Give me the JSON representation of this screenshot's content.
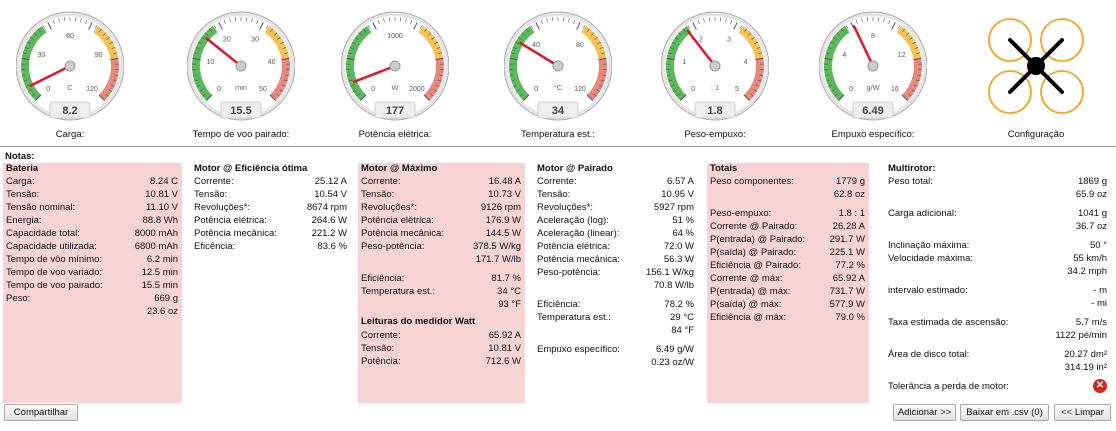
{
  "colors": {
    "panel_pink": "#f6d4d4",
    "needle": "#e0182d",
    "green": "#5cb85c",
    "yellow": "#f5c25a",
    "red": "#e8897f",
    "config_ring": "#f7a21b"
  },
  "gauges": [
    {
      "label": "Carga:",
      "value": "8.2",
      "unit": "C",
      "ticks": [
        "0",
        "30",
        "60",
        "90",
        "120"
      ],
      "min": 0,
      "max": 120,
      "reading": 8.2
    },
    {
      "label": "Tempo de voo pairado:",
      "value": "15.5",
      "unit": "min",
      "ticks": [
        "0",
        "10",
        "20",
        "30",
        "40",
        "50"
      ],
      "min": 0,
      "max": 50,
      "reading": 15.5
    },
    {
      "label": "Potência elétrica:",
      "value": "177",
      "unit": "W",
      "ticks": [
        "0",
        "1000",
        "2000"
      ],
      "min": 0,
      "max": 2000,
      "reading": 177
    },
    {
      "label": "Temperatura est.:",
      "value": "34",
      "unit": "°C",
      "ticks": [
        "0",
        "40",
        "80",
        "120"
      ],
      "min": 0,
      "max": 120,
      "reading": 34
    },
    {
      "label": "Peso-empuxo:",
      "value": "1.8",
      "unit": ": 1",
      "ticks": [
        "0",
        "1",
        "2",
        "3",
        "4",
        "5"
      ],
      "min": 0,
      "max": 5,
      "reading": 1.8
    },
    {
      "label": "Empuxo específico:",
      "value": "6.49",
      "unit": "g/W",
      "ticks": [
        "0",
        "4",
        "8",
        "12",
        "16"
      ],
      "min": 0,
      "max": 16,
      "reading": 6.49
    }
  ],
  "config_label": "Configuração",
  "notes_title": "Notas:",
  "battery": {
    "title": "Bateria",
    "rows": [
      {
        "k": "Carga:",
        "v": "8.24 C"
      },
      {
        "k": "Tensão:",
        "v": "10.81 V"
      },
      {
        "k": "Tensão nominal:",
        "v": "11.10 V"
      },
      {
        "k": "Energia:",
        "v": "88.8 Wh"
      },
      {
        "k": "Capacidade total:",
        "v": "8000 mAh"
      },
      {
        "k": "Capacidade utilizada:",
        "v": "6800 mAh"
      },
      {
        "k": "Tempo de vôo mínimo:",
        "v": "6.2 min"
      },
      {
        "k": "Tempo de voo variado:",
        "v": "12.5 min"
      },
      {
        "k": "Tempo de voo pairado:",
        "v": "15.5 min"
      },
      {
        "k": "Peso:",
        "v": "669 g"
      },
      {
        "k": "",
        "v": "23.6 oz"
      }
    ]
  },
  "motor_opt": {
    "title": "Motor @ Eficiência ótima",
    "rows": [
      {
        "k": "Corrente:",
        "v": "25.12 A"
      },
      {
        "k": "Tensão:",
        "v": "10.54 V"
      },
      {
        "k": "Revoluções*:",
        "v": "8674 rpm"
      },
      {
        "k": "Potência elétrica:",
        "v": "264.6 W"
      },
      {
        "k": "Potência mecânica:",
        "v": "221.2 W"
      },
      {
        "k": "Eficência:",
        "v": "83.6 %"
      }
    ]
  },
  "motor_max": {
    "title": "Motor @ Máximo",
    "rows": [
      {
        "k": "Corrente:",
        "v": "16.48 A"
      },
      {
        "k": "Tensão:",
        "v": "10.73 V"
      },
      {
        "k": "Revoluções*:",
        "v": "9126 rpm"
      },
      {
        "k": "Potência elétrica:",
        "v": "176.9 W"
      },
      {
        "k": "Potência mecânica:",
        "v": "144.5 W"
      },
      {
        "k": "Peso-potência:",
        "v": "378.5 W/kg"
      },
      {
        "k": "",
        "v": "171.7 W/lb"
      },
      {
        "k": "Eficiência:",
        "v": "81.7 %"
      },
      {
        "k": "Temperatura est.:",
        "v": "34 °C"
      },
      {
        "k": "",
        "v": "93 °F"
      }
    ],
    "watt_title": "Leituras do medidor Watt",
    "watt_rows": [
      {
        "k": "Corrente:",
        "v": "65.92 A"
      },
      {
        "k": "Tensão:",
        "v": "10.81 V"
      },
      {
        "k": "Potência:",
        "v": "712.6 W"
      }
    ]
  },
  "motor_hover": {
    "title": "Motor @ Pairado",
    "rows": [
      {
        "k": "Corrente:",
        "v": "6.57 A"
      },
      {
        "k": "Tensão:",
        "v": "10.95 V"
      },
      {
        "k": "Revoluções*:",
        "v": "5927 rpm"
      },
      {
        "k": "Aceleração (log):",
        "v": "51 %"
      },
      {
        "k": "Aceleração (linear):",
        "v": "64 %"
      },
      {
        "k": "Potência elétrica:",
        "v": "72.0 W"
      },
      {
        "k": "Potência mecânica:",
        "v": "56.3 W"
      },
      {
        "k": "Peso-potência:",
        "v": "156.1 W/kg"
      },
      {
        "k": "",
        "v": "70.8 W/lb"
      },
      {
        "k": "Eficiência:",
        "v": "78.2 %"
      },
      {
        "k": "Temperatura est.:",
        "v": "29 °C"
      },
      {
        "k": "",
        "v": "84 °F"
      },
      {
        "k": "Empuxo específico:",
        "v": "6.49 g/W"
      },
      {
        "k": "",
        "v": "0.23 oz/W"
      }
    ]
  },
  "totals": {
    "title": "Totais",
    "rows": [
      {
        "k": "Peso componentes:",
        "v": "1779 g"
      },
      {
        "k": "",
        "v": "62.8 oz"
      },
      {
        "k": "Peso-empuxo:",
        "v": "1.8 : 1"
      },
      {
        "k": "Corrente @ Pairado:",
        "v": "26.28 A"
      },
      {
        "k": "P(entrada) @ Pairado:",
        "v": "291.7 W"
      },
      {
        "k": "P(saída) @ Pairado:",
        "v": "225.1 W"
      },
      {
        "k": "Eficiência @ Pairado:",
        "v": "77.2 %"
      },
      {
        "k": "Corrente @ máx:",
        "v": "65.92 A"
      },
      {
        "k": "P(entrada) @ máx:",
        "v": "731.7 W"
      },
      {
        "k": "P(saída) @ máx:",
        "v": "577.9 W"
      },
      {
        "k": "Eficiência @ máx:",
        "v": "79.0 %"
      }
    ]
  },
  "multirotor": {
    "title": "Multirotor:",
    "rows": [
      {
        "k": "Peso total:",
        "v": "1869 g"
      },
      {
        "k": "",
        "v": "65.9 oz"
      },
      {
        "k": "Carga adicional:",
        "v": "1041 g"
      },
      {
        "k": "",
        "v": "36.7 oz"
      },
      {
        "k": "Inclinação máxima:",
        "v": "50 °"
      },
      {
        "k": "Velocidade máxima:",
        "v": "55 km/h"
      },
      {
        "k": "",
        "v": "34.2 mph"
      },
      {
        "k": "intervalo estimado:",
        "v": "- m"
      },
      {
        "k": "",
        "v": "- mi"
      },
      {
        "k": "Taxa estimada de ascensão:",
        "v": "5.7 m/s"
      },
      {
        "k": "",
        "v": "1122 pé/min"
      },
      {
        "k": "Área de disco total:",
        "v": "20.27 dm²"
      },
      {
        "k": "",
        "v": "314.19 in²"
      },
      {
        "k": "Tolerância a perda de motor:",
        "v": ""
      }
    ]
  },
  "buttons": {
    "share": "Compartilhar",
    "add": "Adicionar >>",
    "download": "Baixar em .csv (0)",
    "clear": "<< Limpar"
  }
}
